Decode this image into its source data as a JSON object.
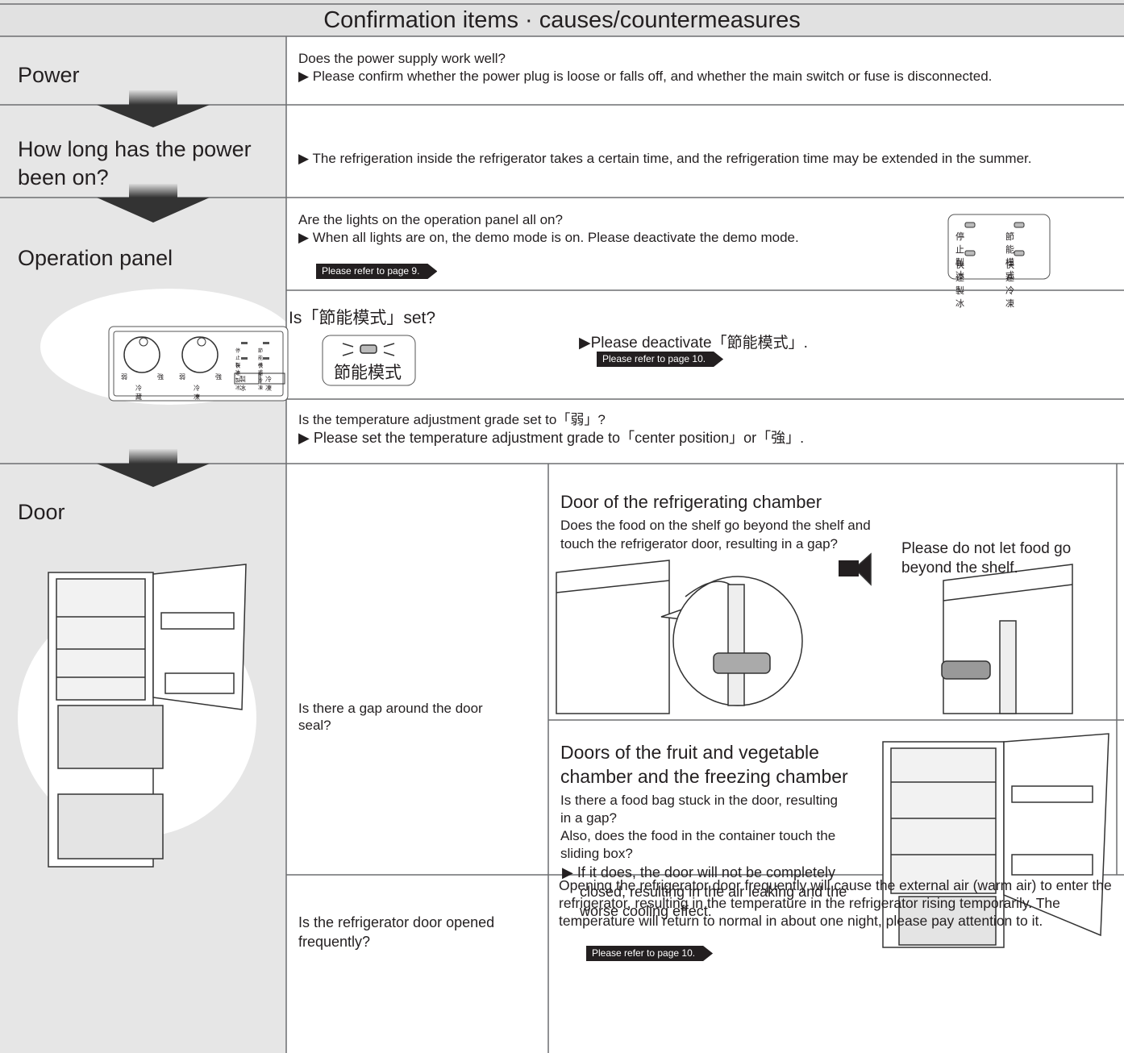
{
  "header": {
    "title": "Confirmation items · causes/countermeasures"
  },
  "steps": [
    {
      "label": "Power",
      "question": "Does the power supply work well?",
      "answer": "▶ Please confirm whether the power plug is loose or falls off, and whether the main switch or fuse is disconnected."
    },
    {
      "label": "How long has the power been on?",
      "answer": "▶ The refrigeration inside the refrigerator takes a certain time, and the refrigeration time may be extended in the summer."
    },
    {
      "label": "Operation panel",
      "panel_labels": [
        "弱",
        "強",
        "弱",
        "強",
        "冷藏",
        "冷凍",
        "停止製冰",
        "節能模式",
        "快速製冰",
        "快速冷凍",
        "製冰",
        "冷凍"
      ],
      "checks": [
        {
          "question": "Are the lights on the operation panel all on?",
          "answer": "▶ When all lights are on, the demo mode is on. Please deactivate the demo mode.",
          "reference": "Please refer to page 9.",
          "indicators": [
            "停止製冰",
            "節能模式",
            "快速製冰",
            "快速冷凍"
          ]
        },
        {
          "question": "Is「節能模式」set?",
          "indicator": "節能模式",
          "answer": "▶Please deactivate「節能模式」.",
          "reference": "Please refer to page 10."
        },
        {
          "question": "Is the temperature adjustment grade set to「弱」?",
          "answer": "▶ Please set the temperature adjustment grade to「center position」or「強」."
        }
      ]
    },
    {
      "label": "Door",
      "checks": [
        {
          "question": "Is there a gap around the door seal?",
          "cases": [
            {
              "heading": "Door of the refrigerating chamber",
              "text": "Does the food on the shelf go beyond the shelf and touch the refrigerator door, resulting in a gap?",
              "solution": "Please do not let food go beyond the shelf."
            },
            {
              "heading": "Doors of the fruit and vegetable chamber and the freezing chamber",
              "text": [
                "Is there a food bag stuck in the door, resulting in a gap?",
                "Also, does the food in the container touch the sliding box?"
              ],
              "answer": "▶ If it does, the door will not be completely closed, resulting in the air leaking and the worse cooling effect.",
              "reference": "Please refer to page 10."
            }
          ]
        },
        {
          "question": "Is the refrigerator door opened frequently?",
          "answer": "Opening the refrigerator door frequently will cause the external air (warm air) to enter the refrigerator, resulting in the temperature in the refrigerator rising temporarily. The temperature will return to normal in about one night, please pay attention to it."
        }
      ]
    }
  ]
}
